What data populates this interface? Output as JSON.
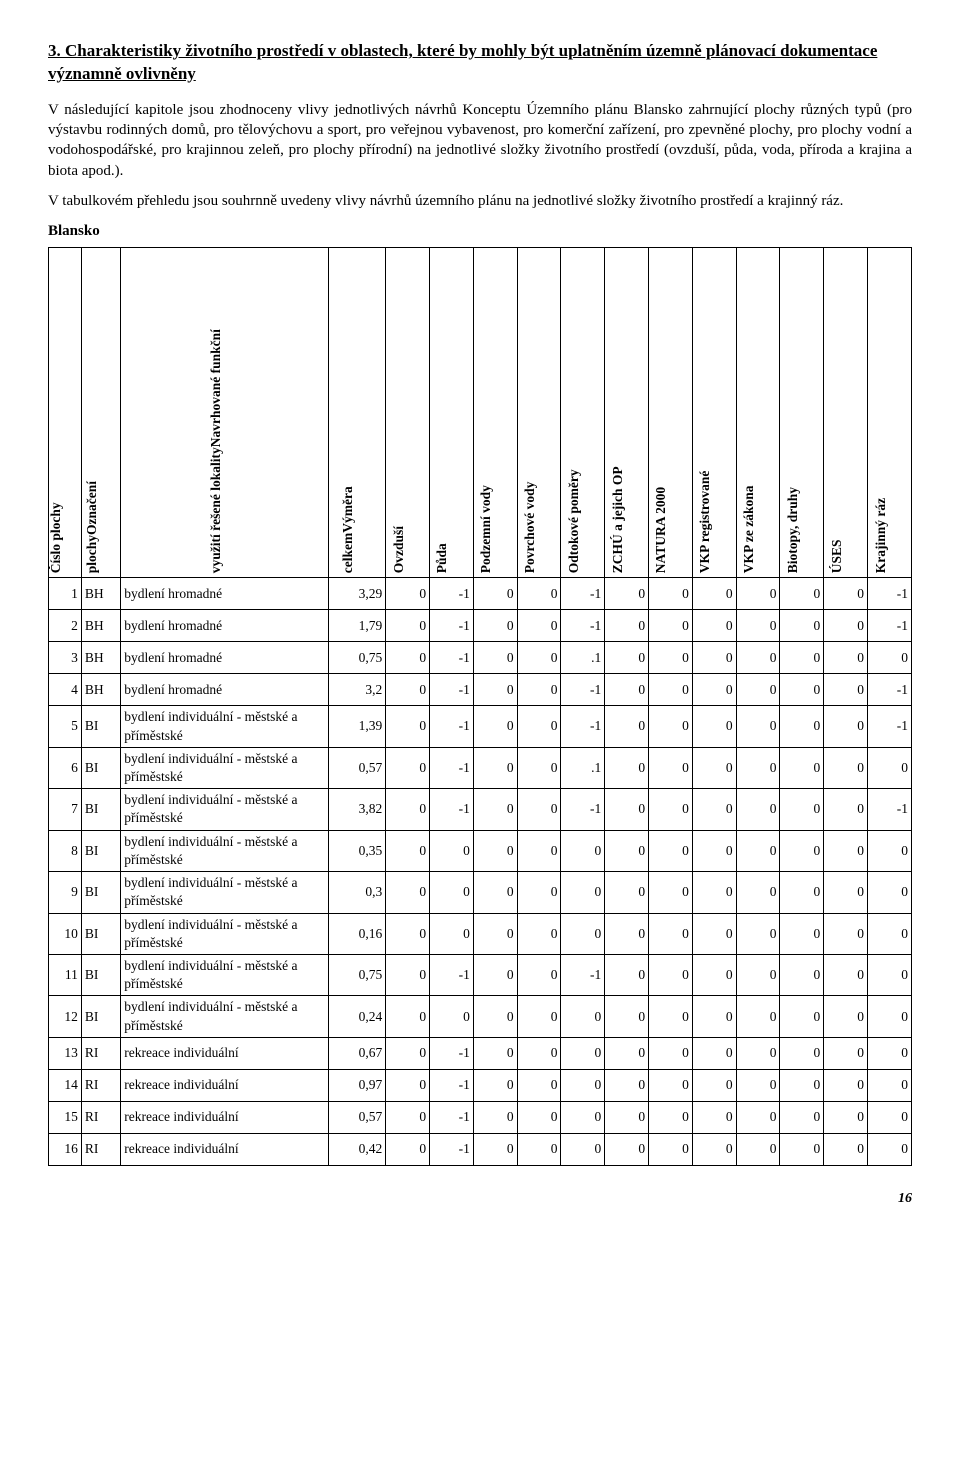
{
  "section_title": "3. Charakteristiky životního prostředí v oblastech, které by mohly být uplatněním územně plánovací dokumentace významně ovlivněny",
  "para1": "V následující kapitole jsou zhodnoceny vlivy jednotlivých návrhů Konceptu Územního plánu Blansko zahrnující plochy různých typů (pro výstavbu rodinných domů, pro tělovýchovu a sport, pro veřejnou vybavenost, pro komerční zařízení, pro zpevněné plochy, pro plochy vodní a vodohospodářské, pro krajinnou zeleň, pro plochy přírodní) na jednotlivé složky životního prostředí (ovzduší, půda, voda, příroda a krajina a biota apod.).",
  "para2": "V tabulkovém přehledu jsou souhrnně uvedeny vlivy návrhů územního plánu na jednotlivé složky životního prostředí a krajinný ráz.",
  "subhead": "Blansko",
  "columns": [
    "Číslo plochy",
    "plochyOznačení",
    "využití řešené lokalityNavrhované funkční",
    "celkemVýměra",
    "Ovzduší",
    "Půda",
    "Podzemní vody",
    "Povrchové vody",
    "Odtokové poměry",
    "ZCHÚ a jejich OP",
    "NATURA 2000",
    "VKP registrované",
    "VKP ze zákona",
    "Biotopy, druhy",
    "ÚSES",
    "Krajinný ráz"
  ],
  "rows": [
    {
      "n": "1",
      "c": "BH",
      "u": "bydlení hromadné",
      "a": "3,29",
      "v": [
        "0",
        "-1",
        "0",
        "0",
        "-1",
        "0",
        "0",
        "0",
        "0",
        "0",
        "0",
        "-1"
      ]
    },
    {
      "n": "2",
      "c": "BH",
      "u": "bydlení hromadné",
      "a": "1,79",
      "v": [
        "0",
        "-1",
        "0",
        "0",
        "-1",
        "0",
        "0",
        "0",
        "0",
        "0",
        "0",
        "-1"
      ]
    },
    {
      "n": "3",
      "c": "BH",
      "u": "bydlení hromadné",
      "a": "0,75",
      "v": [
        "0",
        "-1",
        "0",
        "0",
        ".1",
        "0",
        "0",
        "0",
        "0",
        "0",
        "0",
        "0"
      ]
    },
    {
      "n": "4",
      "c": "BH",
      "u": "bydlení hromadné",
      "a": "3,2",
      "v": [
        "0",
        "-1",
        "0",
        "0",
        "-1",
        "0",
        "0",
        "0",
        "0",
        "0",
        "0",
        "-1"
      ]
    },
    {
      "n": "5",
      "c": "BI",
      "u": "bydlení individuální - městské a příměstské",
      "a": "1,39",
      "v": [
        "0",
        "-1",
        "0",
        "0",
        "-1",
        "0",
        "0",
        "0",
        "0",
        "0",
        "0",
        "-1"
      ]
    },
    {
      "n": "6",
      "c": "BI",
      "u": "bydlení individuální - městské a příměstské",
      "a": "0,57",
      "v": [
        "0",
        "-1",
        "0",
        "0",
        ".1",
        "0",
        "0",
        "0",
        "0",
        "0",
        "0",
        "0"
      ]
    },
    {
      "n": "7",
      "c": "BI",
      "u": "bydlení individuální - městské a příměstské",
      "a": "3,82",
      "v": [
        "0",
        "-1",
        "0",
        "0",
        "-1",
        "0",
        "0",
        "0",
        "0",
        "0",
        "0",
        "-1"
      ]
    },
    {
      "n": "8",
      "c": "BI",
      "u": "bydlení individuální - městské a příměstské",
      "a": "0,35",
      "v": [
        "0",
        "0",
        "0",
        "0",
        "0",
        "0",
        "0",
        "0",
        "0",
        "0",
        "0",
        "0"
      ]
    },
    {
      "n": "9",
      "c": "BI",
      "u": "bydlení individuální - městské a příměstské",
      "a": "0,3",
      "v": [
        "0",
        "0",
        "0",
        "0",
        "0",
        "0",
        "0",
        "0",
        "0",
        "0",
        "0",
        "0"
      ]
    },
    {
      "n": "10",
      "c": "BI",
      "u": "bydlení individuální - městské a příměstské",
      "a": "0,16",
      "v": [
        "0",
        "0",
        "0",
        "0",
        "0",
        "0",
        "0",
        "0",
        "0",
        "0",
        "0",
        "0"
      ]
    },
    {
      "n": "11",
      "c": "BI",
      "u": "bydlení individuální - městské a příměstské",
      "a": "0,75",
      "v": [
        "0",
        "-1",
        "0",
        "0",
        "-1",
        "0",
        "0",
        "0",
        "0",
        "0",
        "0",
        "0"
      ]
    },
    {
      "n": "12",
      "c": "BI",
      "u": "bydlení individuální - městské a příměstské",
      "a": "0,24",
      "v": [
        "0",
        "0",
        "0",
        "0",
        "0",
        "0",
        "0",
        "0",
        "0",
        "0",
        "0",
        "0"
      ]
    },
    {
      "n": "13",
      "c": "RI",
      "u": "rekreace individuální",
      "a": "0,67",
      "v": [
        "0",
        "-1",
        "0",
        "0",
        "0",
        "0",
        "0",
        "0",
        "0",
        "0",
        "0",
        "0"
      ]
    },
    {
      "n": "14",
      "c": "RI",
      "u": "rekreace individuální",
      "a": "0,97",
      "v": [
        "0",
        "-1",
        "0",
        "0",
        "0",
        "0",
        "0",
        "0",
        "0",
        "0",
        "0",
        "0"
      ]
    },
    {
      "n": "15",
      "c": "RI",
      "u": "rekreace individuální",
      "a": "0,57",
      "v": [
        "0",
        "-1",
        "0",
        "0",
        "0",
        "0",
        "0",
        "0",
        "0",
        "0",
        "0",
        "0"
      ]
    },
    {
      "n": "16",
      "c": "RI",
      "u": "rekreace individuální",
      "a": "0,42",
      "v": [
        "0",
        "-1",
        "0",
        "0",
        "0",
        "0",
        "0",
        "0",
        "0",
        "0",
        "0",
        "0"
      ]
    }
  ],
  "page_number": "16",
  "colors": {
    "text": "#000000",
    "background": "#ffffff",
    "border": "#000000"
  }
}
